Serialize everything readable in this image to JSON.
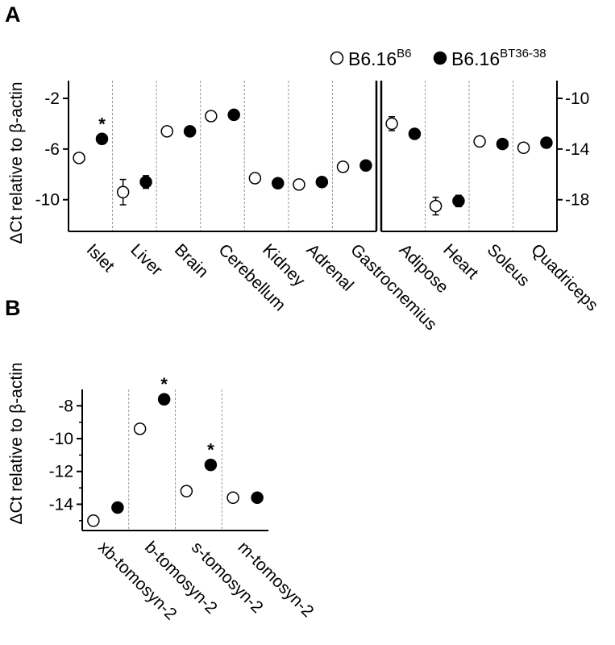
{
  "figure": {
    "panel_a_label": "A",
    "panel_b_label": "B"
  },
  "legend": {
    "wt_base": "B6.16",
    "wt_sup": "B6",
    "mut_base": "B6.16",
    "mut_sup": "BT36-38"
  },
  "colors": {
    "wt_fill": "#ffffff",
    "mut_fill": "#000000",
    "divider": "#999999"
  },
  "chart_data": [
    {
      "id": "A-left",
      "type": "scatter",
      "ylabel": "ΔCt relative to β-actin",
      "axis_side": "left",
      "ylim": [
        -12.5,
        -0.6
      ],
      "yticks": [
        -2,
        -6,
        -10
      ],
      "ytick_labels": [
        "-2",
        "-6",
        "-10"
      ],
      "categories": [
        "Islet",
        "Liver",
        "Brain",
        "Cerebellum",
        "Kidney",
        "Adrenal",
        "Gastrocnemius"
      ],
      "series": [
        {
          "name": "B6.16B6",
          "marker": "open",
          "values": [
            -6.7,
            -9.4,
            -4.6,
            -3.4,
            -8.3,
            -8.8,
            -7.4
          ],
          "errors": [
            0,
            1.0,
            0,
            0,
            0,
            0,
            0
          ]
        },
        {
          "name": "B6.16BT36-38",
          "marker": "filled",
          "values": [
            -5.2,
            -8.6,
            -4.6,
            -3.3,
            -8.7,
            -8.6,
            -7.3
          ],
          "errors": [
            0,
            0.5,
            0,
            0,
            0,
            0,
            0
          ]
        }
      ],
      "significant": [
        true,
        false,
        false,
        false,
        false,
        false,
        false
      ],
      "significance_marker": "*"
    },
    {
      "id": "A-right",
      "type": "scatter",
      "ylabel": "",
      "axis_side": "right",
      "ylim": [
        -20.5,
        -8.6
      ],
      "yticks": [
        -10,
        -14,
        -18
      ],
      "ytick_labels": [
        "-10",
        "-14",
        "-18"
      ],
      "categories": [
        "Adipose",
        "Heart",
        "Soleus",
        "Quadriceps"
      ],
      "series": [
        {
          "name": "B6.16B6",
          "marker": "open",
          "values": [
            -12.0,
            -18.5,
            -13.4,
            -13.9
          ],
          "errors": [
            0.55,
            0.7,
            0,
            0
          ]
        },
        {
          "name": "B6.16BT36-38",
          "marker": "filled",
          "values": [
            -12.8,
            -18.1,
            -13.6,
            -13.5
          ],
          "errors": [
            0,
            0.45,
            0,
            0
          ]
        }
      ],
      "significant": [
        false,
        false,
        false,
        false
      ],
      "significance_marker": "*"
    },
    {
      "id": "B",
      "type": "scatter",
      "ylabel": "ΔCt relative to β-actin",
      "axis_side": "left",
      "ylim": [
        -15.6,
        -7.0
      ],
      "yticks": [
        -8,
        -10,
        -12,
        -14
      ],
      "ytick_labels": [
        "-8",
        "-10",
        "-12",
        "-14"
      ],
      "categories": [
        "xb-tomosyn-2",
        "b-tomosyn-2",
        "s-tomosyn-2",
        "m-tomosyn-2"
      ],
      "series": [
        {
          "name": "B6.16B6",
          "marker": "open",
          "values": [
            -15.0,
            -9.4,
            -13.2,
            -13.6
          ],
          "errors": [
            0,
            0,
            0,
            0
          ]
        },
        {
          "name": "B6.16BT36-38",
          "marker": "filled",
          "values": [
            -14.2,
            -7.6,
            -11.6,
            -13.6
          ],
          "errors": [
            0,
            0,
            0,
            0
          ]
        }
      ],
      "significant": [
        false,
        true,
        true,
        false
      ],
      "significance_marker": "*"
    }
  ]
}
